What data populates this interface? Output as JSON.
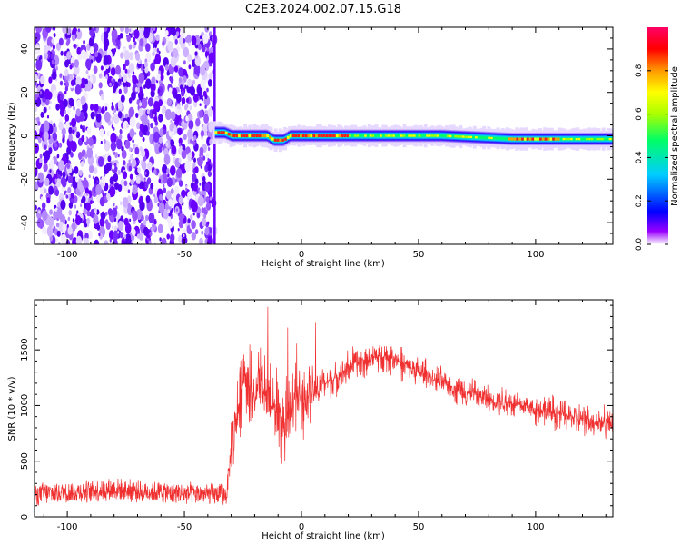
{
  "title": "C2E3.2024.002.07.15.G18",
  "colors": {
    "snr_line": "#f03030",
    "axis": "#000000",
    "spectrogram_scale": [
      "#ffffff",
      "#6600ff",
      "#0000ff",
      "#00ccff",
      "#00ff66",
      "#ffff00",
      "#ff9900",
      "#ff0000",
      "#ff0066"
    ]
  },
  "chart_data": [
    {
      "type": "heatmap",
      "xlabel": "Height of straight line (km)",
      "ylabel": "Frequency (Hz)",
      "xlim": [
        -114,
        133
      ],
      "ylim": [
        -50,
        50
      ],
      "x_ticks": [
        -100,
        -50,
        0,
        50,
        100
      ],
      "x_tick_labels": [
        "-100",
        "-50",
        "0",
        "50",
        "100"
      ],
      "y_ticks": [
        -40,
        -20,
        0,
        20,
        40
      ],
      "y_tick_labels": [
        "-40",
        "-20",
        "0",
        "20",
        "40"
      ],
      "colorbar": {
        "label": "Normalized spectral amplitude",
        "range": [
          0,
          1
        ],
        "ticks": [
          0.0,
          0.2,
          0.4,
          0.6,
          0.8
        ],
        "tick_labels": [
          "0.0",
          "0.2",
          "0.4",
          "0.6",
          "0.8"
        ]
      },
      "noise_region_x": [
        -114,
        -37
      ],
      "signal_band_center_hz": 0,
      "signal_band_start_km": -37,
      "signal_band_profile": [
        {
          "x": -37,
          "y": 1.5
        },
        {
          "x": -33,
          "y": 1.5
        },
        {
          "x": -30,
          "y": 0
        },
        {
          "x": -15,
          "y": 0
        },
        {
          "x": -12,
          "y": -2
        },
        {
          "x": -8,
          "y": -2
        },
        {
          "x": -5,
          "y": 0
        },
        {
          "x": 20,
          "y": 0
        },
        {
          "x": 60,
          "y": 0
        },
        {
          "x": 90,
          "y": -1.5
        },
        {
          "x": 105,
          "y": -1.5
        },
        {
          "x": 115,
          "y": -1.5
        },
        {
          "x": 133,
          "y": -1.5
        }
      ]
    },
    {
      "type": "line",
      "xlabel": "Height of straight line (km)",
      "ylabel": "SNR (10 * v/v)",
      "xlim": [
        -114,
        133
      ],
      "ylim": [
        0,
        1950
      ],
      "x_ticks": [
        -100,
        -50,
        0,
        50,
        100
      ],
      "x_tick_labels": [
        "-100",
        "-50",
        "0",
        "50",
        "100"
      ],
      "y_ticks": [
        0,
        500,
        1000,
        1500
      ],
      "y_tick_labels": [
        "0",
        "500",
        "1000",
        "1500"
      ],
      "series": [
        {
          "x": [
            -114,
            -110,
            -100,
            -90,
            -80,
            -70,
            -60,
            -50,
            -40,
            -32,
            -30,
            -28,
            -26,
            -24,
            -22,
            -20,
            -18,
            -16,
            -14,
            -12,
            -10,
            -8,
            -6,
            -4,
            -2,
            0,
            5,
            10,
            15,
            20,
            25,
            30,
            35,
            40,
            45,
            50,
            60,
            70,
            80,
            90,
            100,
            110,
            120,
            133
          ],
          "y": [
            200,
            210,
            220,
            230,
            250,
            230,
            220,
            210,
            200,
            200,
            600,
            850,
            1100,
            1300,
            1150,
            1050,
            1250,
            1100,
            1150,
            950,
            1000,
            750,
            1050,
            950,
            1200,
            1050,
            1100,
            1200,
            1250,
            1350,
            1400,
            1430,
            1450,
            1420,
            1350,
            1300,
            1200,
            1130,
            1060,
            1020,
            970,
            930,
            870,
            840
          ]
        }
      ]
    }
  ]
}
